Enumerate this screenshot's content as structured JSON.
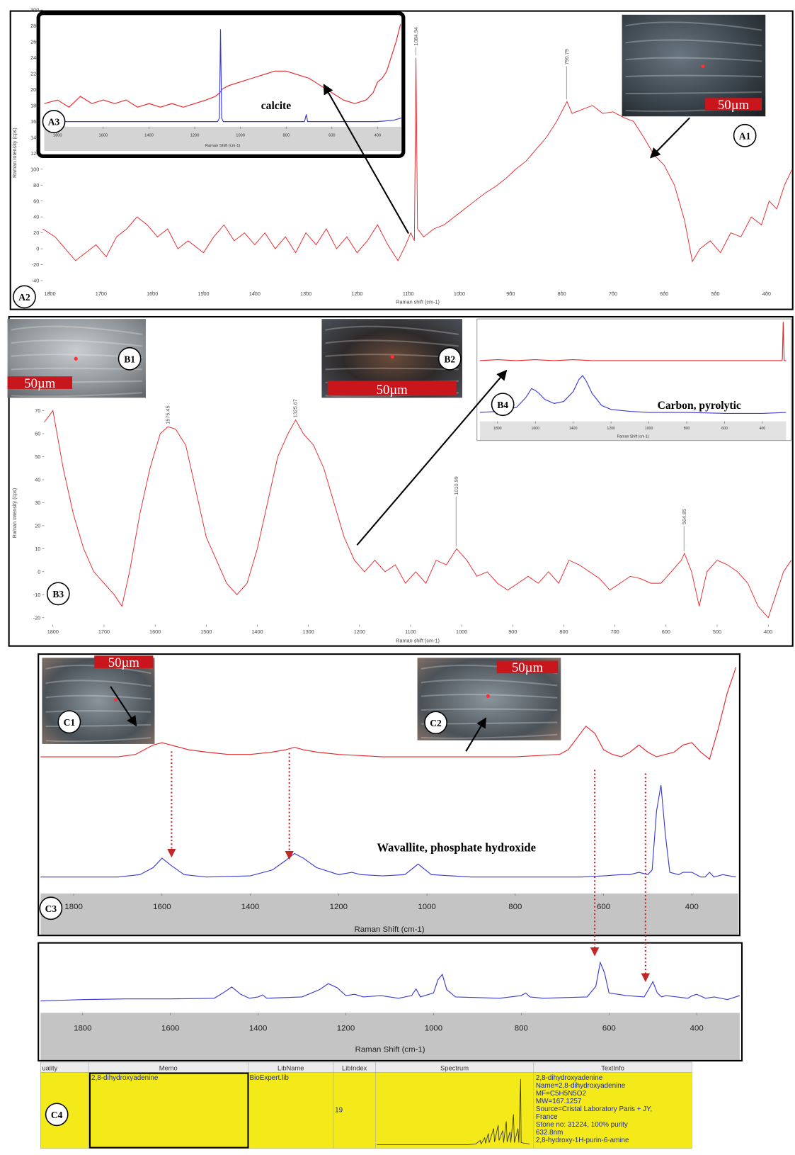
{
  "charts": {
    "a2": {
      "type": "line",
      "label": "A2",
      "x_label": "Raman shift (cm-1)",
      "y_label": "Raman Intensity (cps)",
      "xlim": [
        1814,
        349
      ],
      "ylim": [
        -53,
        294
      ],
      "xticks": [
        1800,
        1700,
        1600,
        1500,
        1400,
        1300,
        1200,
        1100,
        1000,
        900,
        800,
        700,
        600,
        500,
        400
      ],
      "yticks": [
        -40,
        -20,
        0,
        20,
        40,
        60,
        80,
        100,
        120,
        140,
        160,
        180,
        200,
        220,
        240,
        260,
        280,
        300
      ],
      "peaks": [
        1084.94,
        790.79
      ],
      "series": [
        {
          "color": "#e8262a",
          "x": [
            1814,
            1790,
            1770,
            1750,
            1730,
            1710,
            1690,
            1670,
            1650,
            1630,
            1610,
            1590,
            1570,
            1550,
            1530,
            1500,
            1480,
            1460,
            1440,
            1420,
            1400,
            1380,
            1360,
            1340,
            1320,
            1300,
            1280,
            1260,
            1240,
            1220,
            1200,
            1180,
            1160,
            1140,
            1120,
            1105,
            1095,
            1088,
            1085,
            1082,
            1070,
            1050,
            1030,
            1010,
            990,
            970,
            950,
            930,
            910,
            890,
            870,
            850,
            830,
            810,
            790,
            780,
            760,
            740,
            720,
            700,
            680,
            660,
            640,
            620,
            600,
            580,
            560,
            545,
            530,
            510,
            490,
            470,
            450,
            430,
            410,
            395,
            380,
            365,
            350
          ],
          "values": [
            25,
            15,
            0,
            -15,
            -5,
            5,
            -10,
            15,
            25,
            40,
            30,
            15,
            25,
            0,
            10,
            -5,
            15,
            30,
            10,
            20,
            5,
            20,
            0,
            15,
            -5,
            20,
            5,
            25,
            0,
            15,
            -5,
            10,
            30,
            5,
            -15,
            5,
            20,
            10,
            240,
            25,
            15,
            25,
            30,
            40,
            50,
            60,
            70,
            78,
            88,
            100,
            110,
            125,
            140,
            160,
            185,
            170,
            175,
            180,
            170,
            172,
            165,
            160,
            140,
            118,
            105,
            80,
            35,
            -16,
            0,
            10,
            -5,
            20,
            15,
            40,
            30,
            60,
            50,
            80,
            100
          ]
        }
      ]
    },
    "a3": {
      "type": "line",
      "label": "A3",
      "annotation": "calcite",
      "x_label": "Raman Shift (cm-1)",
      "xlim": [
        1858,
        297
      ],
      "ylim": [
        15.3,
        30.3
      ],
      "xticks": [
        1800,
        1600,
        1400,
        1200,
        1000,
        800,
        600,
        400
      ],
      "series": [
        {
          "color": "#e8262a",
          "x": [
            1858,
            1800,
            1750,
            1700,
            1650,
            1600,
            1550,
            1500,
            1450,
            1400,
            1350,
            1300,
            1250,
            1200,
            1150,
            1110,
            1090,
            1080,
            1050,
            1000,
            950,
            900,
            850,
            800,
            750,
            700,
            650,
            600,
            550,
            500,
            450,
            420,
            400,
            380,
            360,
            340,
            320,
            300
          ],
          "values": [
            18.5,
            19,
            18,
            19.5,
            18.5,
            19,
            18.5,
            19,
            18,
            18.5,
            18,
            18.5,
            18,
            18.5,
            19,
            19.5,
            20,
            20.5,
            21,
            21.5,
            22,
            22.5,
            23,
            23,
            22.5,
            22,
            21,
            20,
            19,
            18.5,
            19,
            20,
            21.5,
            22,
            23,
            25,
            27,
            29.5
          ]
        },
        {
          "color": "#3b3bd0",
          "x": [
            1858,
            1200,
            1100,
            1092,
            1087,
            1082,
            1075,
            1000,
            720,
            712,
            706,
            700,
            400,
            330,
            297
          ],
          "values": [
            16,
            16,
            16,
            16.5,
            28.8,
            16.5,
            16,
            16,
            16,
            17,
            16,
            16,
            16,
            16.2,
            16.5
          ]
        }
      ]
    },
    "b3": {
      "type": "line",
      "label": "B3",
      "x_label": "Raman shift (cm-1)",
      "y_label": "Raman Intensity (cps)",
      "xlim": [
        1817,
        355
      ],
      "ylim": [
        -23,
        74
      ],
      "xticks": [
        1800,
        1700,
        1600,
        1500,
        1400,
        1300,
        1200,
        1100,
        1000,
        900,
        800,
        700,
        600,
        500,
        400
      ],
      "yticks": [
        -20,
        -10,
        0,
        10,
        20,
        30,
        40,
        50,
        60,
        70
      ],
      "peaks": [
        1575.45,
        1325.67,
        1010.99,
        564.85
      ],
      "series": [
        {
          "color": "#e8262a",
          "x": [
            1817,
            1800,
            1780,
            1760,
            1740,
            1720,
            1700,
            1680,
            1665,
            1650,
            1630,
            1610,
            1590,
            1575,
            1560,
            1540,
            1520,
            1500,
            1480,
            1460,
            1440,
            1420,
            1400,
            1380,
            1360,
            1340,
            1325,
            1310,
            1290,
            1270,
            1250,
            1230,
            1210,
            1190,
            1170,
            1150,
            1130,
            1110,
            1090,
            1070,
            1050,
            1030,
            1010,
            990,
            970,
            950,
            930,
            910,
            890,
            870,
            850,
            830,
            810,
            790,
            770,
            750,
            730,
            710,
            690,
            670,
            650,
            630,
            610,
            590,
            570,
            564,
            550,
            535,
            520,
            500,
            480,
            460,
            440,
            420,
            400,
            385,
            370,
            355
          ],
          "values": [
            65,
            70,
            45,
            25,
            10,
            0,
            -5,
            -10,
            -15,
            0,
            25,
            45,
            60,
            63,
            62,
            55,
            35,
            15,
            5,
            -5,
            -10,
            -5,
            10,
            30,
            50,
            60,
            66,
            60,
            55,
            45,
            30,
            15,
            5,
            0,
            5,
            0,
            3,
            -5,
            0,
            -5,
            5,
            3,
            10,
            5,
            -2,
            0,
            -5,
            -8,
            -5,
            -2,
            -5,
            0,
            -5,
            5,
            3,
            0,
            -3,
            -8,
            -5,
            -2,
            -3,
            -5,
            -5,
            0,
            5,
            8,
            0,
            -15,
            0,
            5,
            3,
            0,
            -5,
            -15,
            -20,
            -10,
            0,
            5
          ]
        }
      ]
    },
    "b4": {
      "type": "line",
      "label": "B4",
      "annotation": "Carbon, pyrolytic",
      "x_label": "Raman Shift (cm-1)",
      "xlim": [
        1893,
        275
      ],
      "ylim": [
        0,
        100
      ],
      "xticks": [
        1800,
        1600,
        1400,
        1200,
        1000,
        800,
        600,
        400
      ],
      "series": [
        {
          "color": "#e8262a",
          "x": [
            1893,
            1800,
            1700,
            1600,
            1500,
            1400,
            1300,
            1200,
            1000,
            800,
            600,
            400,
            300,
            295,
            290,
            285,
            275
          ],
          "values": [
            61,
            62,
            61,
            62,
            61,
            62,
            61,
            61,
            61,
            61,
            61,
            61,
            61,
            62,
            100,
            61,
            61
          ]
        },
        {
          "color": "#3b3bd0",
          "x": [
            1893,
            1800,
            1700,
            1650,
            1620,
            1600,
            1580,
            1550,
            1500,
            1450,
            1400,
            1370,
            1350,
            1330,
            1300,
            1250,
            1200,
            1100,
            1000,
            800,
            600,
            400,
            275
          ],
          "values": [
            9,
            10,
            14,
            24,
            33,
            31,
            28,
            22,
            18,
            20,
            30,
            42,
            46,
            40,
            28,
            16,
            12,
            10,
            9,
            9,
            8,
            8,
            9
          ]
        }
      ]
    },
    "c3": {
      "type": "line",
      "label": "C3",
      "annotation": "Wavallite, phosphate hydroxide",
      "x_label": "Raman Shift (cm-1)",
      "xlim": [
        1875,
        295
      ],
      "ylim": [
        0,
        100
      ],
      "xticks": [
        1800,
        1600,
        1400,
        1200,
        1000,
        800,
        600,
        400
      ],
      "series": [
        {
          "color": "#e8262a",
          "x": [
            1875,
            1800,
            1700,
            1660,
            1640,
            1620,
            1600,
            1580,
            1560,
            1540,
            1500,
            1450,
            1400,
            1350,
            1320,
            1300,
            1280,
            1250,
            1200,
            1150,
            1100,
            1000,
            900,
            800,
            700,
            680,
            660,
            640,
            620,
            600,
            580,
            560,
            540,
            520,
            500,
            480,
            440,
            420,
            400,
            380,
            360,
            340,
            320,
            300
          ],
          "values": [
            58,
            58,
            58,
            59,
            61,
            63,
            64,
            63,
            62,
            61,
            60,
            59,
            59,
            60,
            61,
            62,
            61,
            60,
            59,
            58.5,
            58,
            58,
            58,
            58,
            59,
            61,
            66,
            71,
            68,
            61,
            59,
            58,
            60,
            63,
            60,
            58,
            60,
            63,
            64,
            60,
            57,
            70,
            85,
            96
          ]
        },
        {
          "color": "#3b3bd0",
          "x": [
            1875,
            1700,
            1650,
            1620,
            1600,
            1580,
            1550,
            1500,
            1400,
            1350,
            1320,
            1300,
            1280,
            1250,
            1200,
            1170,
            1150,
            1100,
            1050,
            1030,
            1020,
            1010,
            990,
            900,
            800,
            700,
            650,
            600,
            560,
            540,
            520,
            500,
            490,
            480,
            470,
            460,
            450,
            430,
            420,
            400,
            380,
            370,
            360,
            350,
            330,
            300
          ],
          "values": [
            7,
            7,
            8,
            11,
            15,
            12,
            8,
            7,
            7.5,
            10,
            14,
            17,
            15,
            11,
            8,
            9,
            8,
            7.5,
            8,
            11,
            12.5,
            11,
            8,
            7,
            7,
            7,
            7,
            7.5,
            8,
            8,
            9,
            8,
            10,
            35,
            46,
            25,
            9,
            8,
            9,
            9,
            7,
            7,
            9,
            7,
            8,
            7
          ]
        }
      ]
    },
    "c4": {
      "type": "line",
      "x_label": "Raman Shift (cm-1)",
      "xlim": [
        1896,
        302
      ],
      "ylim": [
        0,
        100
      ],
      "xticks": [
        1800,
        1600,
        1400,
        1200,
        1000,
        800,
        600,
        400
      ],
      "series": [
        {
          "color": "#3b3bd0",
          "x": [
            1896,
            1800,
            1700,
            1600,
            1500,
            1480,
            1460,
            1440,
            1420,
            1400,
            1390,
            1380,
            1300,
            1260,
            1240,
            1220,
            1200,
            1180,
            1160,
            1120,
            1080,
            1050,
            1040,
            1030,
            1000,
            990,
            980,
            970,
            950,
            900,
            850,
            800,
            790,
            780,
            750,
            700,
            650,
            630,
            620,
            610,
            600,
            580,
            560,
            520,
            510,
            500,
            490,
            480,
            470,
            420,
            410,
            400,
            380,
            360,
            330,
            302
          ],
          "values": [
            18,
            20,
            21,
            21,
            22,
            30,
            39,
            28,
            22,
            24,
            27,
            22,
            24,
            35,
            44,
            38,
            26,
            28,
            24,
            26,
            22,
            26,
            36,
            24,
            30,
            50,
            58,
            35,
            24,
            23,
            22,
            26,
            30,
            24,
            22,
            23,
            24,
            40,
            76,
            60,
            30,
            28,
            26,
            24,
            35,
            47,
            30,
            24,
            26,
            22,
            26,
            28,
            22,
            24,
            20,
            26
          ]
        }
      ]
    }
  },
  "photos": {
    "a1": {
      "label": "A1",
      "scale": "50µm"
    },
    "b1": {
      "label": "B1",
      "scale": "50µm"
    },
    "b2": {
      "label": "B2",
      "scale": "50µm"
    },
    "c1": {
      "label": "C1",
      "scale": "50µm"
    },
    "c2": {
      "label": "C2",
      "scale": "50µm"
    }
  },
  "table": {
    "label": "C4",
    "columns": [
      "uality",
      "Memo",
      "LibName",
      "LibIndex",
      "Spectrum",
      "TextInfo"
    ],
    "row": {
      "memo": "2,8-dihydroxyadenine",
      "lib_name": "BioExpert.lib",
      "lib_index": 19,
      "spectrum": {
        "xlim": [
          2000,
          280
        ],
        "ylim": [
          0,
          100
        ],
        "x": [
          2000,
          1000,
          900,
          850,
          840,
          800,
          790,
          760,
          750,
          700,
          690,
          650,
          640,
          600,
          590,
          560,
          550,
          520,
          510,
          480,
          470,
          430,
          420,
          400,
          395,
          300
        ],
        "values": [
          2,
          2,
          3,
          8,
          3,
          12,
          4,
          18,
          5,
          25,
          6,
          30,
          8,
          22,
          5,
          35,
          6,
          20,
          5,
          45,
          5,
          25,
          5,
          95,
          5,
          3
        ]
      },
      "text_info": [
        "2,8-dihydroxyadenine",
        "Name=2,8-dihydroxyadenine",
        "MF=C5H5N5O2",
        "MW=167.1257",
        "Source=Cristal Laboratory Paris + JY,",
        "France",
        "Stone no: 31224, 100% purity",
        "632.8nm",
        "2,8-hydroxy-1H-purin-6-amine"
      ]
    }
  }
}
